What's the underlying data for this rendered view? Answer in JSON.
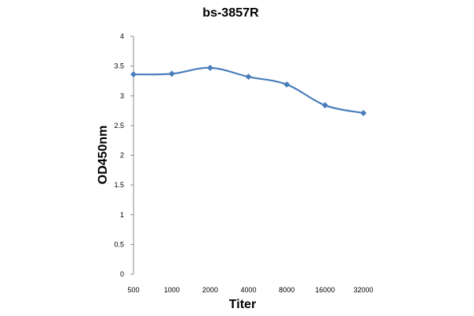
{
  "chart_data": {
    "type": "line",
    "title": "bs-3857R",
    "xlabel": "Titer",
    "ylabel": "OD450nm",
    "categories": [
      "500",
      "1000",
      "2000",
      "4000",
      "8000",
      "16000",
      "32000"
    ],
    "series": [
      {
        "values": [
          3.36,
          3.37,
          3.47,
          3.32,
          3.19,
          2.84,
          2.71
        ]
      }
    ],
    "ylim": [
      0,
      4
    ],
    "yticks": [
      "0",
      "0.5",
      "1",
      "1.5",
      "2",
      "2.5",
      "3",
      "3.5",
      "4"
    ],
    "grid": false,
    "legend": "none",
    "line_color": "#4a7ebb"
  }
}
